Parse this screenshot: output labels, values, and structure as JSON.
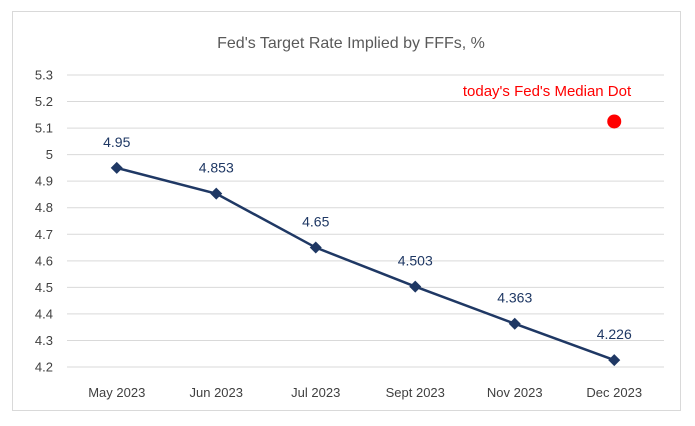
{
  "chart_data": {
    "type": "line",
    "title": "Fed's Target Rate Implied by FFFs, %",
    "categories": [
      "May 2023",
      "Jun 2023",
      "Jul 2023",
      "Sept 2023",
      "Nov 2023",
      "Dec 2023"
    ],
    "series": [
      {
        "values": [
          4.95,
          4.853,
          4.65,
          4.503,
          4.363,
          4.226
        ],
        "data_labels": [
          "4.95",
          "4.853",
          "4.65",
          "4.503",
          "4.363",
          "4.226"
        ],
        "color": "#1f3864",
        "marker": "diamond"
      }
    ],
    "median_dot": {
      "label": "today's Fed's Median Dot",
      "category": "Dec 2023",
      "value": 5.125,
      "color": "#ff0000"
    },
    "y_ticks": [
      "4.2",
      "4.3",
      "4.4",
      "4.5",
      "4.6",
      "4.7",
      "4.8",
      "4.9",
      "5",
      "5.1",
      "5.2",
      "5.3"
    ],
    "ylim": [
      4.2,
      5.3
    ],
    "grid": true,
    "gridline_color": "#d9d9d9",
    "xlabel": "",
    "ylabel": ""
  }
}
